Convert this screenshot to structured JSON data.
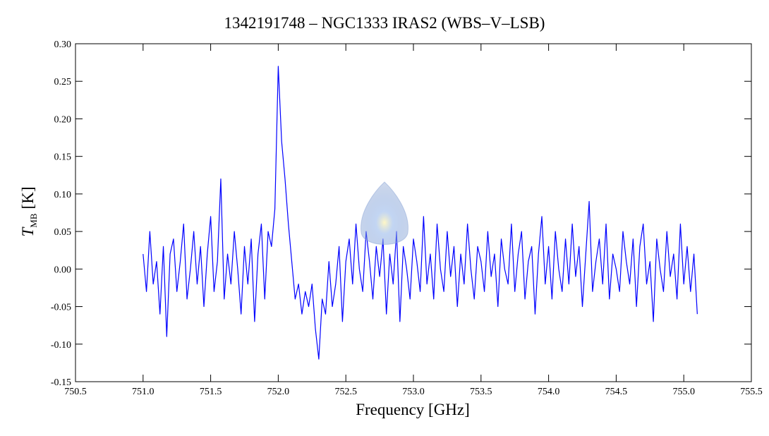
{
  "chart_data": {
    "type": "line",
    "title": "1342191748 – NGC1333 IRAS2 (WBS–V–LSB)",
    "xlabel": "Frequency [GHz]",
    "ylabel": {
      "main": "T",
      "sub": "MB",
      "unit": "[K]"
    },
    "xlim": [
      750.5,
      755.5
    ],
    "ylim": [
      -0.15,
      0.3
    ],
    "xticks": [
      750.5,
      {
        "value": 751,
        "label": "751.0"
      },
      751.5,
      {
        "value": 752,
        "label": "752.0"
      },
      752.5,
      {
        "value": 753,
        "label": "753.0"
      },
      753.5,
      {
        "value": 754,
        "label": "754.0"
      },
      754.5,
      {
        "value": 755,
        "label": "755.0"
      },
      755.5
    ],
    "yticks": [
      {
        "value": 0.3,
        "label": "0.30"
      },
      0.25,
      {
        "value": 0.2,
        "label": "0.20"
      },
      0.15,
      {
        "value": 0.1,
        "label": "0.10"
      },
      0.05,
      {
        "value": 0,
        "label": "0.00"
      },
      -0.05,
      {
        "value": -0.1,
        "label": "-0.10"
      },
      -0.15
    ],
    "series": [
      {
        "color": "#0000ff",
        "x": [
          751.0,
          751.025,
          751.05,
          751.075,
          751.1,
          751.125,
          751.15,
          751.175,
          751.2,
          751.225,
          751.25,
          751.275,
          751.3,
          751.325,
          751.35,
          751.375,
          751.4,
          751.425,
          751.45,
          751.475,
          751.5,
          751.525,
          751.55,
          751.575,
          751.6,
          751.625,
          751.65,
          751.675,
          751.7,
          751.725,
          751.75,
          751.775,
          751.8,
          751.825,
          751.85,
          751.875,
          751.9,
          751.925,
          751.95,
          751.975,
          752.0,
          752.025,
          752.05,
          752.075,
          752.1,
          752.125,
          752.15,
          752.175,
          752.2,
          752.225,
          752.25,
          752.275,
          752.3,
          752.325,
          752.35,
          752.375,
          752.4,
          752.425,
          752.45,
          752.475,
          752.5,
          752.525,
          752.55,
          752.575,
          752.6,
          752.625,
          752.65,
          752.675,
          752.7,
          752.725,
          752.75,
          752.775,
          752.8,
          752.825,
          752.85,
          752.875,
          752.9,
          752.925,
          752.95,
          752.975,
          753.0,
          753.025,
          753.05,
          753.075,
          753.1,
          753.125,
          753.15,
          753.175,
          753.2,
          753.225,
          753.25,
          753.275,
          753.3,
          753.325,
          753.35,
          753.375,
          753.4,
          753.425,
          753.45,
          753.475,
          753.5,
          753.525,
          753.55,
          753.575,
          753.6,
          753.625,
          753.65,
          753.675,
          753.7,
          753.725,
          753.75,
          753.775,
          753.8,
          753.825,
          753.85,
          753.875,
          753.9,
          753.925,
          753.95,
          753.975,
          754.0,
          754.025,
          754.05,
          754.075,
          754.1,
          754.125,
          754.15,
          754.175,
          754.2,
          754.225,
          754.25,
          754.275,
          754.3,
          754.325,
          754.35,
          754.375,
          754.4,
          754.425,
          754.45,
          754.475,
          754.5,
          754.525,
          754.55,
          754.575,
          754.6,
          754.625,
          754.65,
          754.675,
          754.7,
          754.725,
          754.75,
          754.775,
          754.8,
          754.825,
          754.85,
          754.875,
          754.9,
          754.925,
          754.95,
          754.975,
          755.0,
          755.025,
          755.05,
          755.075,
          755.1
        ],
        "values": [
          0.02,
          -0.03,
          0.05,
          -0.02,
          0.01,
          -0.06,
          0.03,
          -0.09,
          0.02,
          0.04,
          -0.03,
          0.01,
          0.06,
          -0.04,
          0.0,
          0.05,
          -0.02,
          0.03,
          -0.05,
          0.02,
          0.07,
          -0.03,
          0.01,
          0.12,
          -0.04,
          0.02,
          -0.02,
          0.05,
          0.0,
          -0.06,
          0.03,
          -0.02,
          0.04,
          -0.07,
          0.02,
          0.06,
          -0.04,
          0.05,
          0.03,
          0.08,
          0.27,
          0.17,
          0.12,
          0.06,
          0.01,
          -0.04,
          -0.02,
          -0.06,
          -0.03,
          -0.05,
          -0.02,
          -0.08,
          -0.12,
          -0.04,
          -0.06,
          0.01,
          -0.05,
          -0.02,
          0.03,
          -0.07,
          0.01,
          0.04,
          -0.02,
          0.06,
          0.0,
          -0.03,
          0.05,
          0.01,
          -0.04,
          0.03,
          -0.01,
          0.04,
          -0.06,
          0.02,
          -0.02,
          0.05,
          -0.07,
          0.03,
          0.0,
          -0.04,
          0.04,
          0.01,
          -0.03,
          0.07,
          -0.02,
          0.02,
          -0.04,
          0.06,
          0.0,
          -0.03,
          0.05,
          -0.01,
          0.03,
          -0.05,
          0.02,
          -0.02,
          0.06,
          0.0,
          -0.04,
          0.03,
          0.01,
          -0.03,
          0.05,
          -0.01,
          0.02,
          -0.05,
          0.04,
          0.0,
          -0.02,
          0.06,
          -0.03,
          0.02,
          0.05,
          -0.04,
          0.01,
          0.03,
          -0.06,
          0.02,
          0.07,
          -0.02,
          0.03,
          -0.04,
          0.05,
          0.0,
          -0.03,
          0.04,
          -0.02,
          0.06,
          -0.01,
          0.03,
          -0.05,
          0.02,
          0.09,
          -0.03,
          0.01,
          0.04,
          -0.02,
          0.06,
          -0.04,
          0.02,
          0.0,
          -0.03,
          0.05,
          0.01,
          -0.02,
          0.04,
          -0.05,
          0.03,
          0.06,
          -0.02,
          0.01,
          -0.07,
          0.04,
          0.0,
          -0.03,
          0.05,
          -0.01,
          0.02,
          -0.04,
          0.06,
          -0.02,
          0.03,
          -0.03,
          0.02,
          -0.06
        ]
      }
    ]
  }
}
